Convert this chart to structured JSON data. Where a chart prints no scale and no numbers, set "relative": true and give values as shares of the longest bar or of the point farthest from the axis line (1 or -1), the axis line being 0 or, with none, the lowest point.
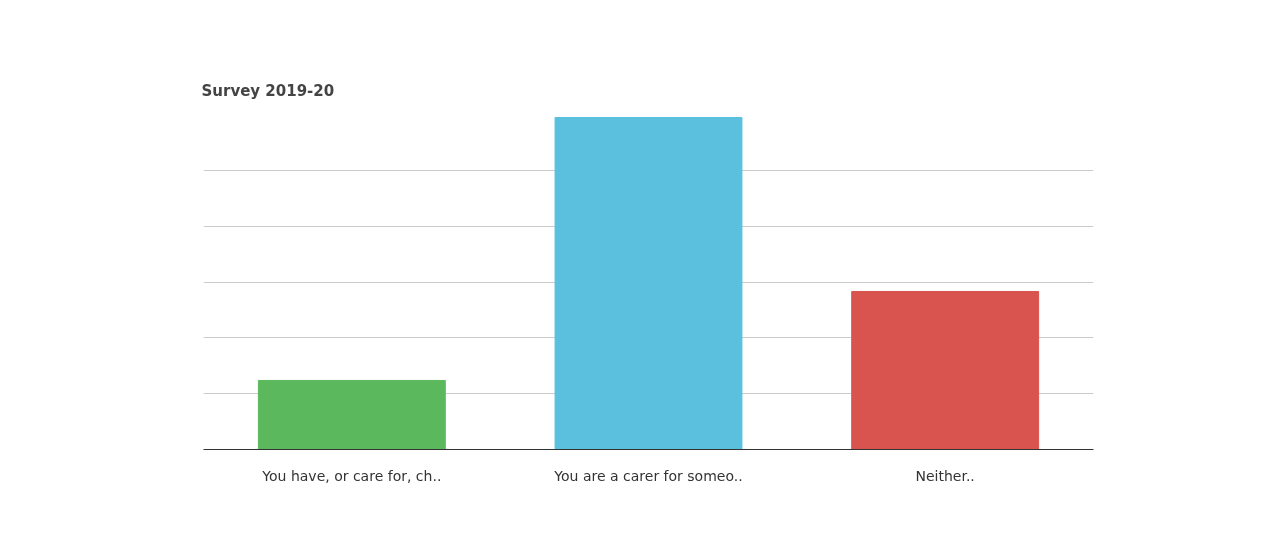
{
  "chart_data": {
    "type": "bar",
    "title": "Survey 2019-20",
    "categories": [
      "You have, or care for, ch..",
      "You are a carer for someo..",
      "Neither.."
    ],
    "values": [
      0.208,
      1,
      0.476
    ],
    "colors": [
      "#5cb85c",
      "#5bc0de",
      "#d9534f"
    ],
    "relative": true,
    "grid": "y"
  }
}
